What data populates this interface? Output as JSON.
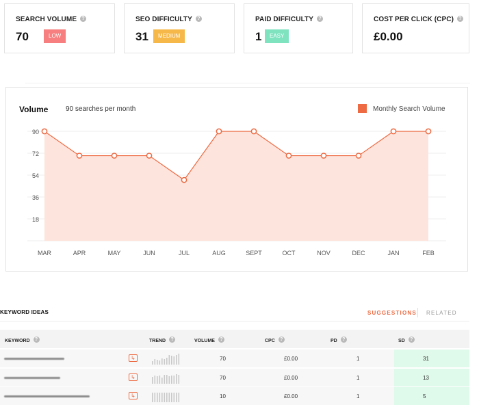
{
  "metrics": [
    {
      "title": "SEARCH VOLUME",
      "value": "70",
      "badge": "LOW",
      "badge_color": "#f77f7f"
    },
    {
      "title": "SEO DIFFICULTY",
      "value": "31",
      "badge": "MEDIUM",
      "badge_color": "#f7b84a"
    },
    {
      "title": "PAID DIFFICULTY",
      "value": "1",
      "badge": "EASY",
      "badge_color": "#7fe3c0"
    },
    {
      "title": "COST PER CLICK (CPC)",
      "value": "£0.00"
    }
  ],
  "volume": {
    "title": "Volume",
    "subtitle": "90 searches per month",
    "legend": "Monthly Search Volume",
    "legend_color": "#ed6a42"
  },
  "chart_data": {
    "type": "area",
    "categories": [
      "MAR",
      "APR",
      "MAY",
      "JUN",
      "JUL",
      "AUG",
      "SEPT",
      "OCT",
      "NOV",
      "DEC",
      "JAN",
      "FEB"
    ],
    "series": [
      {
        "name": "Monthly Search Volume",
        "values": [
          90,
          70,
          70,
          70,
          50,
          90,
          90,
          70,
          70,
          70,
          90,
          90
        ]
      }
    ],
    "yticks": [
      18,
      36,
      54,
      72,
      90
    ],
    "ylim": [
      0,
      90
    ],
    "grid": true,
    "legend": "top-right",
    "color": "#ed6a42"
  },
  "keyword_ideas": {
    "title": "KEYWORD IDEAS",
    "tabs": [
      "SUGGESTIONS",
      "RELATED"
    ],
    "columns": [
      "KEYWORD",
      "TREND",
      "VOLUME",
      "CPC",
      "PD",
      "SD"
    ],
    "rows": [
      {
        "volume": "70",
        "cpc": "£0.00",
        "pd": "1",
        "sd": "31"
      },
      {
        "volume": "70",
        "cpc": "£0.00",
        "pd": "1",
        "sd": "13"
      },
      {
        "volume": "10",
        "cpc": "£0.00",
        "pd": "1",
        "sd": "5"
      }
    ]
  }
}
